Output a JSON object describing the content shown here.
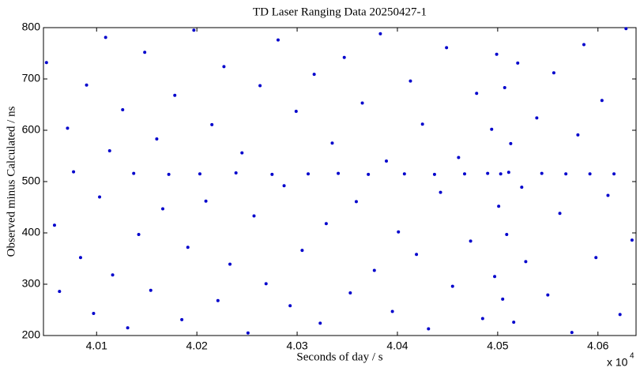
{
  "chart_data": {
    "type": "scatter",
    "title": "TD Laser Ranging Data 20250427-1",
    "x_label": "Seconds of day / s",
    "y_label": "Observed minus Calculated / ns",
    "x_multiplier": {
      "base": "x 10",
      "exponent": "4"
    },
    "xlim": [
      40047,
      40638
    ],
    "ylim": [
      200,
      800
    ],
    "xticks": [
      {
        "value": 40100,
        "label": "4.01"
      },
      {
        "value": 40200,
        "label": "4.02"
      },
      {
        "value": 40300,
        "label": "4.03"
      },
      {
        "value": 40400,
        "label": "4.04"
      },
      {
        "value": 40500,
        "label": "4.05"
      },
      {
        "value": 40600,
        "label": "4.06"
      }
    ],
    "yticks": [
      200,
      300,
      400,
      500,
      600,
      700,
      800
    ],
    "grid": false,
    "series": [
      {
        "color": "#0000cc",
        "x": [
          40050,
          40058,
          40063,
          40071,
          40077,
          40084,
          40090,
          40097,
          40103,
          40109,
          40113,
          40116,
          40126,
          40131,
          40137,
          40142,
          40148,
          40154,
          40160,
          40166,
          40172,
          40178,
          40185,
          40191,
          40197,
          40203,
          40209,
          40215,
          40221,
          40227,
          40233,
          40239,
          40245,
          40251,
          40257,
          40263,
          40269,
          40275,
          40281,
          40287,
          40293,
          40299,
          40305,
          40311,
          40317,
          40323,
          40329,
          40335,
          40341,
          40347,
          40353,
          40359,
          40365,
          40371,
          40377,
          40383,
          40389,
          40395,
          40401,
          40407,
          40413,
          40419,
          40425,
          40431,
          40437,
          40443,
          40449,
          40455,
          40461,
          40467,
          40473,
          40479,
          40485,
          40490,
          40494,
          40497,
          40499,
          40501,
          40503,
          40505,
          40507,
          40509,
          40511,
          40513,
          40516,
          40520,
          40524,
          40528,
          40539,
          40544,
          40550,
          40556,
          40562,
          40568,
          40574,
          40580,
          40586,
          40592,
          40598,
          40604,
          40610,
          40616,
          40622,
          40628,
          40634
        ],
        "values": [
          732,
          415,
          286,
          604,
          519,
          352,
          688,
          243,
          470,
          781,
          560,
          318,
          640,
          215,
          516,
          397,
          752,
          288,
          583,
          447,
          514,
          668,
          231,
          372,
          795,
          515,
          462,
          611,
          268,
          724,
          339,
          517,
          556,
          205,
          433,
          687,
          301,
          514,
          776,
          492,
          258,
          637,
          366,
          515,
          709,
          224,
          418,
          575,
          516,
          742,
          283,
          461,
          653,
          514,
          327,
          788,
          540,
          247,
          402,
          515,
          696,
          358,
          612,
          213,
          514,
          479,
          761,
          296,
          547,
          515,
          384,
          672,
          233,
          516,
          602,
          315,
          748,
          452,
          515,
          271,
          683,
          397,
          518,
          574,
          226,
          731,
          489,
          344,
          624,
          516,
          279,
          712,
          438,
          515,
          206,
          591,
          767,
          515,
          352,
          658,
          473,
          515,
          241,
          798,
          386
        ]
      }
    ]
  }
}
